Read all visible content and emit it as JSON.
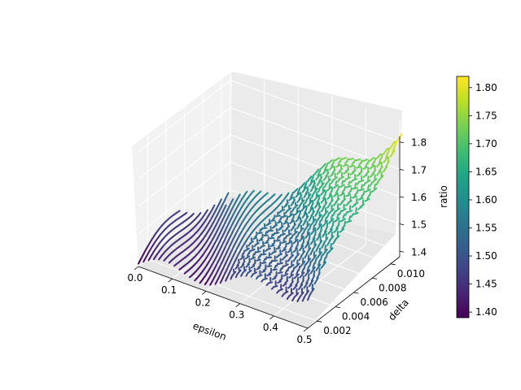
{
  "chart_data": {
    "type": "surface-contour-3d",
    "title": "",
    "x": {
      "label": "epsilon",
      "ticks": [
        "0.0",
        "0.1",
        "0.2",
        "0.3",
        "0.4",
        "0.5"
      ],
      "range": [
        0.0,
        0.5
      ]
    },
    "y": {
      "label": "delta",
      "ticks": [
        "0.002",
        "0.004",
        "0.006",
        "0.008",
        "0.010"
      ],
      "range": [
        0.001,
        0.011
      ]
    },
    "z": {
      "label": "ratio",
      "ticks": [
        "1.4",
        "1.5",
        "1.6",
        "1.7",
        "1.8"
      ],
      "range": [
        1.38,
        1.82
      ]
    },
    "colorbar": {
      "colormap": "viridis",
      "ticks": [
        "1.40",
        "1.45",
        "1.50",
        "1.55",
        "1.60",
        "1.65",
        "1.70",
        "1.75",
        "1.80"
      ],
      "range": [
        1.39,
        1.82
      ]
    },
    "description_of_data": [
      {
        "epsilon": 0.0,
        "delta": 0.001,
        "ratio": 1.39
      },
      {
        "epsilon": 0.0,
        "delta": 0.011,
        "ratio": 1.56
      },
      {
        "epsilon": 0.5,
        "delta": 0.001,
        "ratio": 1.5
      },
      {
        "epsilon": 0.5,
        "delta": 0.011,
        "ratio": 1.82
      }
    ]
  }
}
